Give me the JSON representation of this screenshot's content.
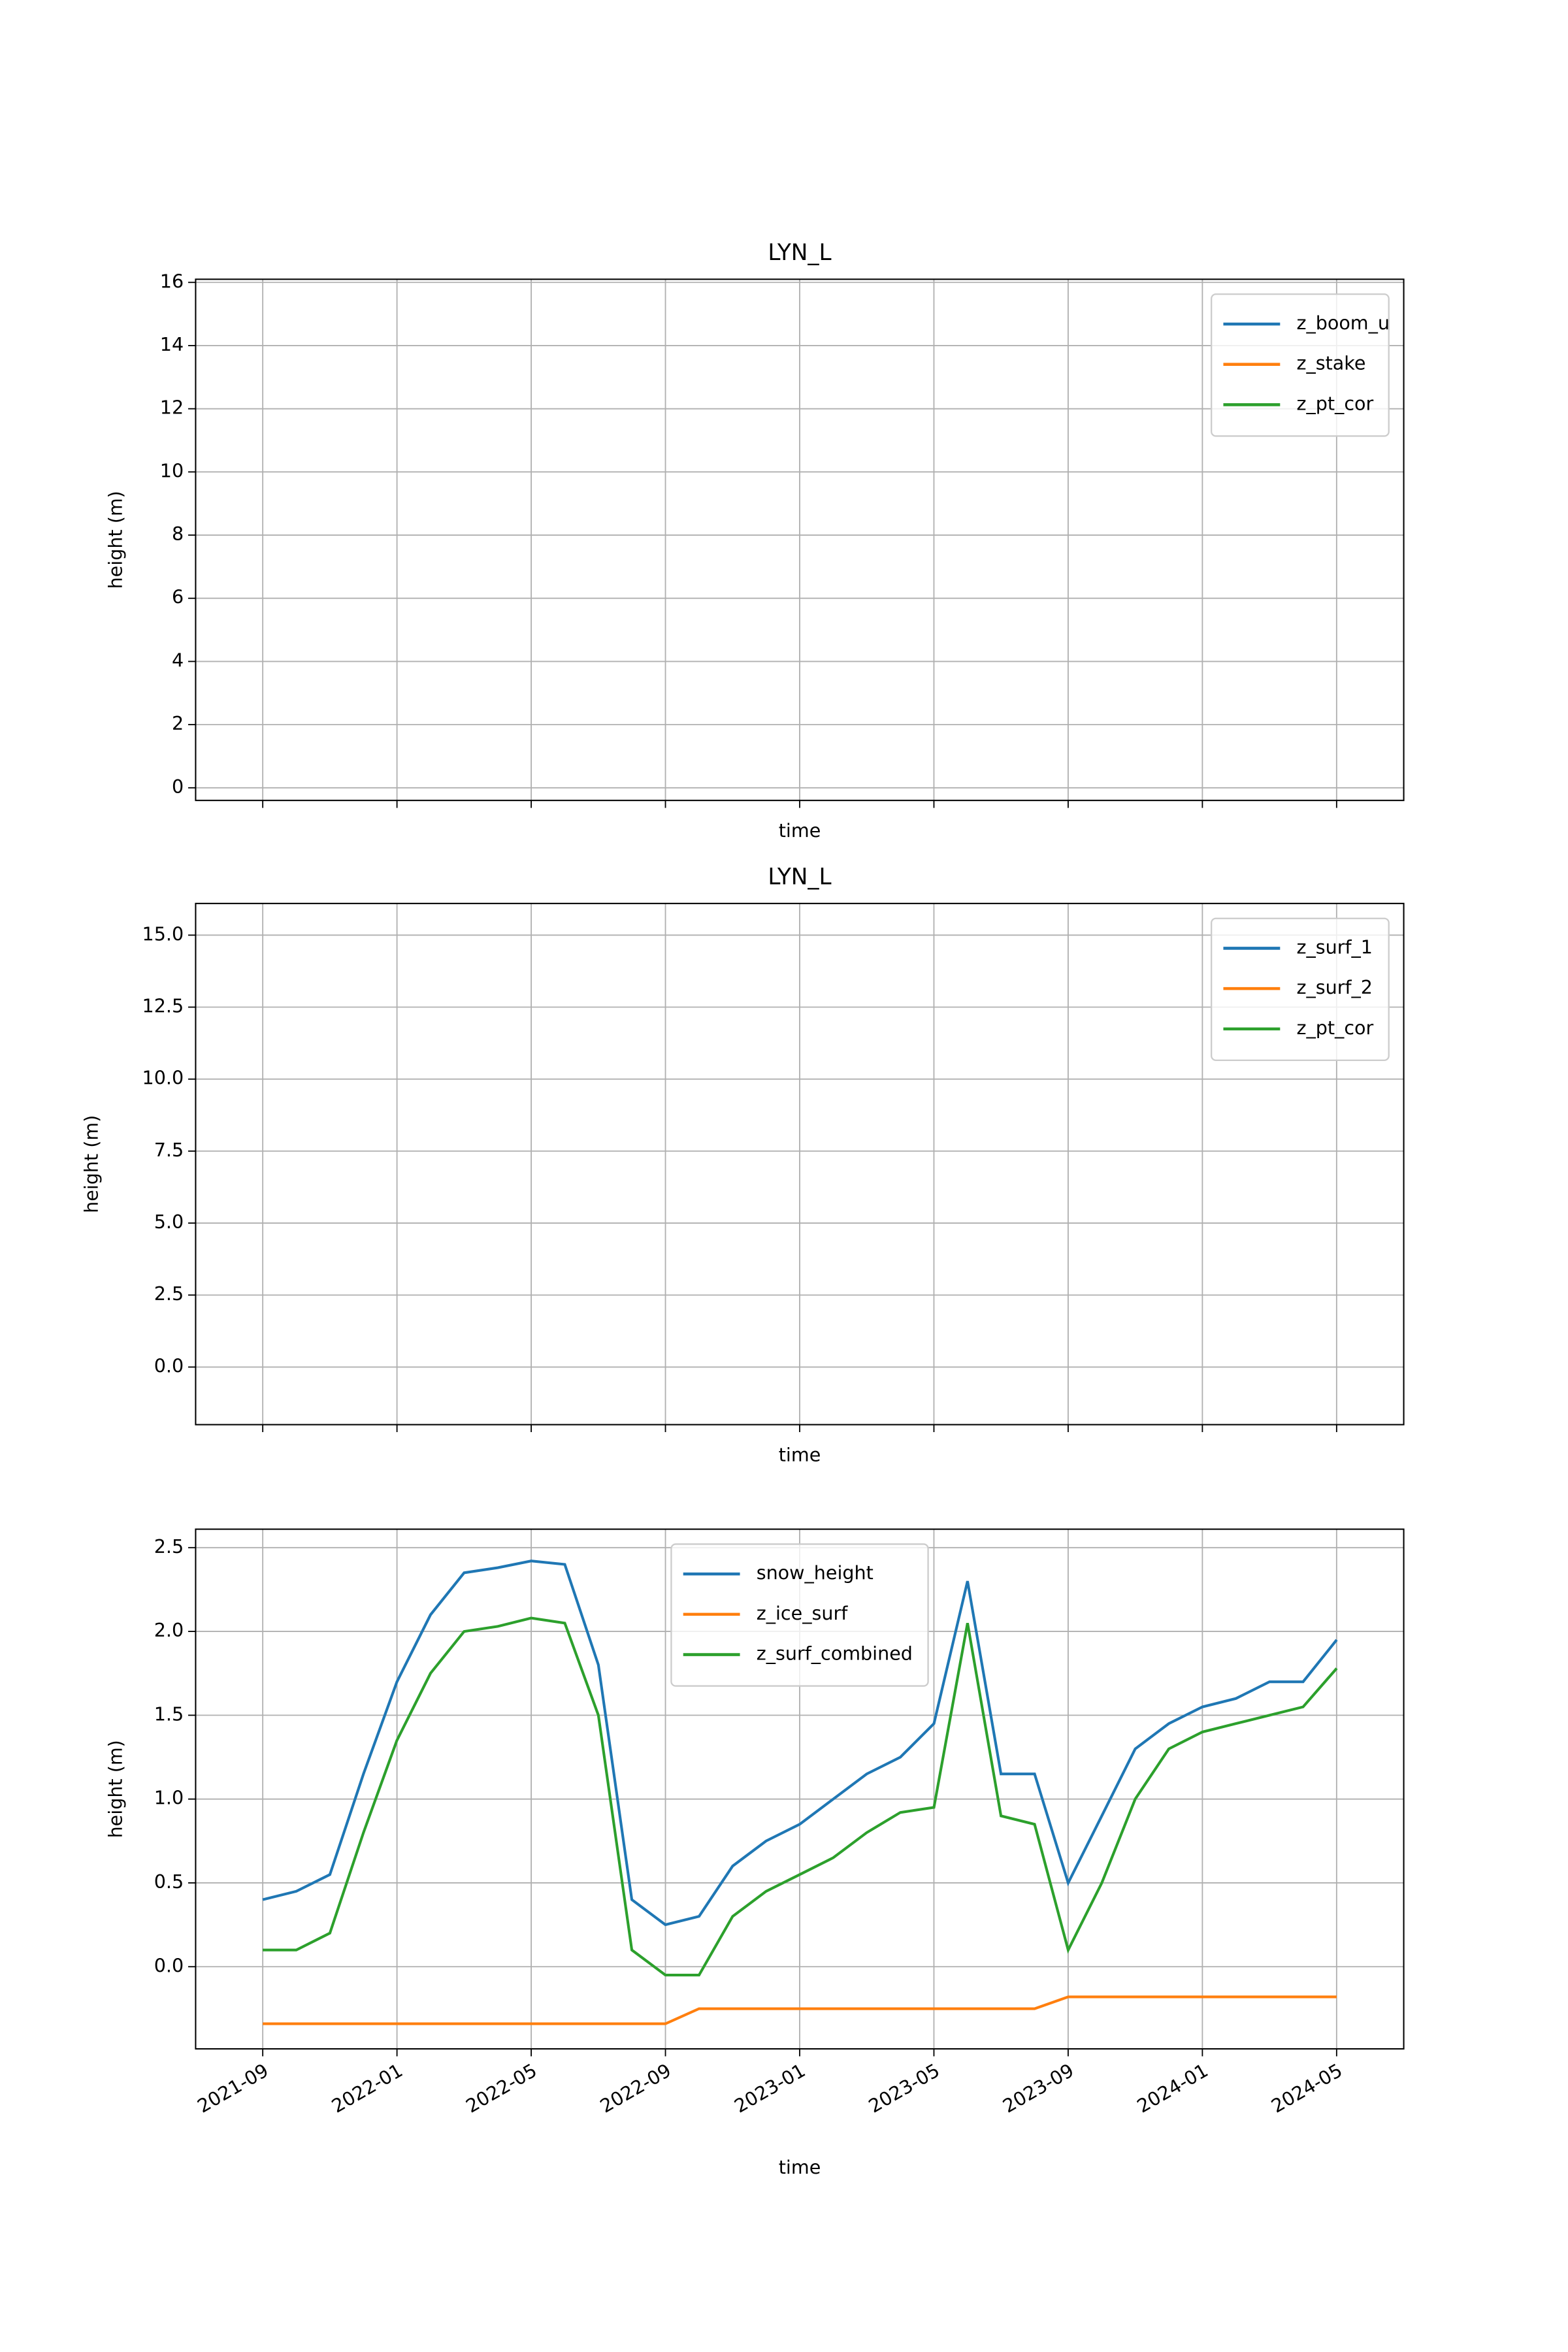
{
  "chart_data": [
    {
      "type": "line",
      "title": "LYN_L",
      "xlabel": "time",
      "ylabel": "height (m)",
      "x": [],
      "series": [
        {
          "name": "z_boom_u",
          "color": "#1f77b4",
          "values": []
        },
        {
          "name": "z_stake",
          "color": "#ff7f0e",
          "values": []
        },
        {
          "name": "z_pt_cor",
          "color": "#2ca02c",
          "values": []
        }
      ],
      "xlim": [
        "2021-07",
        "2024-07"
      ],
      "xticks": [
        "2021-09",
        "2022-01",
        "2022-05",
        "2022-09",
        "2023-01",
        "2023-05",
        "2023-09",
        "2024-01",
        "2024-05"
      ],
      "show_xtick_labels": false,
      "ylim": [
        -0.4,
        16.1
      ],
      "yticks": [
        0,
        2,
        4,
        6,
        8,
        10,
        12,
        14,
        16
      ],
      "grid": true,
      "legend": "upper right"
    },
    {
      "type": "line",
      "title": "LYN_L",
      "xlabel": "time",
      "ylabel": "height (m)",
      "x": [],
      "series": [
        {
          "name": "z_surf_1",
          "color": "#1f77b4",
          "values": []
        },
        {
          "name": "z_surf_2",
          "color": "#ff7f0e",
          "values": []
        },
        {
          "name": "z_pt_cor",
          "color": "#2ca02c",
          "values": []
        }
      ],
      "xlim": [
        "2021-07",
        "2024-07"
      ],
      "xticks": [
        "2021-09",
        "2022-01",
        "2022-05",
        "2022-09",
        "2023-01",
        "2023-05",
        "2023-09",
        "2024-01",
        "2024-05"
      ],
      "show_xtick_labels": false,
      "ylim": [
        -2,
        16.1
      ],
      "yticks": [
        {
          "value": 0,
          "label": "0.0"
        },
        2.5,
        {
          "value": 5,
          "label": "5.0"
        },
        7.5,
        {
          "value": 10,
          "label": "10.0"
        },
        12.5,
        {
          "value": 15,
          "label": "15.0"
        }
      ],
      "grid": true,
      "legend": "upper right"
    },
    {
      "type": "line",
      "xlabel": "time",
      "ylabel": "height (m)",
      "x": [
        "2021-09",
        "2021-10",
        "2021-11",
        "2021-12",
        "2022-01",
        "2022-02",
        "2022-03",
        "2022-04",
        "2022-05",
        "2022-06",
        "2022-07",
        "2022-08",
        "2022-09",
        "2022-10",
        "2022-11",
        "2022-12",
        "2023-01",
        "2023-02",
        "2023-03",
        "2023-04",
        "2023-05",
        "2023-06",
        "2023-07",
        "2023-08",
        "2023-09",
        "2023-10",
        "2023-11",
        "2023-12",
        "2024-01",
        "2024-02",
        "2024-03",
        "2024-04",
        "2024-05"
      ],
      "series": [
        {
          "name": "snow_height",
          "color": "#1f77b4",
          "values": [
            0.4,
            0.45,
            0.55,
            1.15,
            1.7,
            2.1,
            2.35,
            2.38,
            2.42,
            2.4,
            1.8,
            0.4,
            0.25,
            0.3,
            0.6,
            0.75,
            0.85,
            1.0,
            1.15,
            1.25,
            1.45,
            2.3,
            1.15,
            1.15,
            0.5,
            0.9,
            1.3,
            1.45,
            1.55,
            1.6,
            1.7,
            1.7,
            1.95
          ]
        },
        {
          "name": "z_ice_surf",
          "color": "#ff7f0e",
          "values": [
            -0.34,
            -0.34,
            -0.34,
            -0.34,
            -0.34,
            -0.34,
            -0.34,
            -0.34,
            -0.34,
            -0.34,
            -0.34,
            -0.34,
            -0.34,
            -0.25,
            -0.25,
            -0.25,
            -0.25,
            -0.25,
            -0.25,
            -0.25,
            -0.25,
            -0.25,
            -0.25,
            -0.25,
            -0.18,
            -0.18,
            -0.18,
            -0.18,
            -0.18,
            -0.18,
            -0.18,
            -0.18,
            -0.18
          ]
        },
        {
          "name": "z_surf_combined",
          "color": "#2ca02c",
          "values": [
            0.1,
            0.1,
            0.2,
            0.8,
            1.35,
            1.75,
            2.0,
            2.03,
            2.08,
            2.05,
            1.5,
            0.1,
            -0.05,
            -0.05,
            0.3,
            0.45,
            0.55,
            0.65,
            0.8,
            0.92,
            0.95,
            2.05,
            0.9,
            0.85,
            0.1,
            0.5,
            1.0,
            1.3,
            1.4,
            1.45,
            1.5,
            1.55,
            1.78
          ]
        }
      ],
      "xlim": [
        "2021-07",
        "2024-07"
      ],
      "xticks": [
        "2021-09",
        "2022-01",
        "2022-05",
        "2022-09",
        "2023-01",
        "2023-05",
        "2023-09",
        "2024-01",
        "2024-05"
      ],
      "show_xtick_labels": true,
      "ylim": [
        -0.49,
        2.61
      ],
      "yticks": [
        {
          "value": 0,
          "label": "0.0"
        },
        0.5,
        {
          "value": 1,
          "label": "1.0"
        },
        1.5,
        {
          "value": 2,
          "label": "2.0"
        },
        2.5
      ],
      "grid": true,
      "legend": "upper center"
    }
  ]
}
